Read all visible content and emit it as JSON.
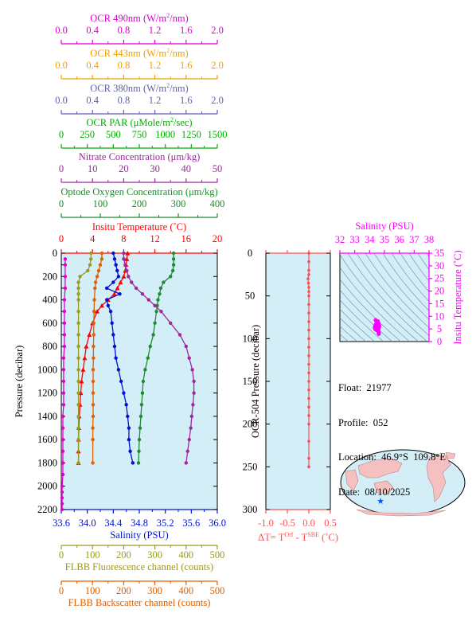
{
  "colors": {
    "ocr490": "#e000d0",
    "ocr443": "#f0a000",
    "ocr380": "#6060b0",
    "par": "#00b000",
    "nitrate": "#9a2a9a",
    "oxygen": "#208a30",
    "temperature": "#ff0000",
    "salinity": "#0010d0",
    "fluorescence": "#9a9a20",
    "backscatter": "#e06000",
    "plot_bg": "#d4eef8",
    "dt": "#ff5050",
    "ts_point": "#ff00ff"
  },
  "top_axes": [
    {
      "key": "ocr490",
      "label": "OCR 490nm (W/m²/nm)",
      "ticks": [
        "0.0",
        "0.4",
        "0.8",
        "1.2",
        "1.6",
        "2.0"
      ]
    },
    {
      "key": "ocr443",
      "label": "OCR 443nm (W/m²/nm)",
      "ticks": [
        "0.0",
        "0.4",
        "0.8",
        "1.2",
        "1.6",
        "2.0"
      ]
    },
    {
      "key": "ocr380",
      "label": "OCR 380nm (W/m²/nm)",
      "ticks": [
        "0.0",
        "0.4",
        "0.8",
        "1.2",
        "1.6",
        "2.0"
      ]
    },
    {
      "key": "par",
      "label": "OCR PAR (μMole/m²/sec)",
      "ticks": [
        "0",
        "250",
        "500",
        "750",
        "1000",
        "1250",
        "1500"
      ]
    },
    {
      "key": "nitrate",
      "label": "Nitrate Concentration (μm/kg)",
      "ticks": [
        "0",
        "10",
        "20",
        "30",
        "40",
        "50"
      ]
    },
    {
      "key": "oxygen",
      "label": "Optode Oxygen Concentration (μm/kg)",
      "ticks": [
        "0",
        "100",
        "200",
        "300",
        "400"
      ]
    },
    {
      "key": "temperature",
      "label": "Insitu Temperature (˚C)",
      "ticks": [
        "0",
        "4",
        "8",
        "12",
        "16",
        "20"
      ]
    }
  ],
  "bottom_axes": [
    {
      "key": "salinity",
      "label": "Salinity (PSU)",
      "ticks": [
        "33.6",
        "34.0",
        "34.4",
        "34.8",
        "35.2",
        "35.6",
        "36.0"
      ]
    },
    {
      "key": "fluorescence",
      "label": "FLBB Fluorescence channel (counts)",
      "ticks": [
        "0",
        "100",
        "200",
        "300",
        "400",
        "500"
      ]
    },
    {
      "key": "backscatter",
      "label": "FLBB Backscatter channel (counts)",
      "ticks": [
        "0",
        "100",
        "200",
        "300",
        "400",
        "500"
      ]
    }
  ],
  "pressure_axis": {
    "label": "Pressure (decibar)",
    "ticks": [
      "0",
      "200",
      "400",
      "600",
      "800",
      "1000",
      "1200",
      "1400",
      "1600",
      "1800",
      "2000",
      "2200"
    ]
  },
  "ocr_pressure_axis": {
    "label": "OCR-504 Pressure (decibar)",
    "ticks": [
      "0",
      "50",
      "100",
      "150",
      "200",
      "250",
      "300"
    ]
  },
  "dt_axis": {
    "label_main": "ΔT= T",
    "label_sup1": "Orf",
    "label_mid": " - T",
    "label_sup2": "SBE",
    "label_end": " (˚C)",
    "ticks": [
      "-1.0",
      "-0.5",
      "0.0",
      "0.5"
    ]
  },
  "ts_axis": {
    "title": "Salinity (PSU)",
    "sal_ticks": [
      "32",
      "33",
      "34",
      "35",
      "36",
      "37",
      "38"
    ],
    "temp_label": "Insitu Temperature (˚C)",
    "temp_ticks": [
      "0",
      "5",
      "10",
      "15",
      "20",
      "25",
      "30",
      "35"
    ]
  },
  "info": {
    "float": "Float:  21977",
    "profile": "Profile:  052",
    "location": "Location:  46.9°S  109.8°E",
    "date": "Date:  08/10/2025"
  },
  "chart_data": [
    {
      "type": "line",
      "y_name": "Pressure",
      "ylim": [
        2200,
        0
      ],
      "series": [
        {
          "name": "Insitu Temperature",
          "xlim": [
            0,
            20
          ],
          "x": [
            8.5,
            8.4,
            8.3,
            8.2,
            8.0,
            7.6,
            7.2,
            6.8,
            6.0,
            5.2,
            4.6,
            4.0,
            3.6,
            3.2,
            3.0,
            2.8,
            2.6,
            2.5,
            2.4,
            2.3,
            2.25,
            2.2,
            2.2,
            2.2
          ],
          "y": [
            0,
            50,
            100,
            150,
            200,
            250,
            300,
            350,
            400,
            450,
            500,
            600,
            700,
            800,
            900,
            1000,
            1100,
            1200,
            1300,
            1400,
            1500,
            1600,
            1700,
            1800
          ]
        },
        {
          "name": "Salinity",
          "xlim": [
            33.6,
            36.0
          ],
          "x": [
            34.4,
            34.42,
            34.44,
            34.46,
            34.48,
            34.4,
            34.3,
            34.5,
            34.3,
            34.32,
            34.36,
            34.38,
            34.4,
            34.42,
            34.44,
            34.48,
            34.52,
            34.56,
            34.6,
            34.62,
            34.64,
            34.64,
            34.66,
            34.7
          ],
          "y": [
            0,
            50,
            100,
            150,
            200,
            250,
            300,
            350,
            400,
            450,
            500,
            600,
            700,
            800,
            900,
            1000,
            1100,
            1200,
            1300,
            1400,
            1500,
            1600,
            1700,
            1800
          ]
        },
        {
          "name": "Optode Oxygen Concentration",
          "xlim": [
            0,
            400
          ],
          "x": [
            288,
            288,
            288,
            286,
            280,
            262,
            255,
            252,
            248,
            246,
            244,
            240,
            236,
            228,
            222,
            215,
            210,
            208,
            206,
            204,
            202,
            200,
            199,
            198
          ],
          "y": [
            0,
            50,
            100,
            150,
            200,
            250,
            300,
            350,
            400,
            450,
            500,
            600,
            700,
            800,
            900,
            1000,
            1100,
            1200,
            1300,
            1400,
            1500,
            1600,
            1700,
            1800
          ]
        },
        {
          "name": "Nitrate Concentration",
          "xlim": [
            0,
            50
          ],
          "x": [
            20,
            20,
            20.5,
            21,
            21.5,
            22.5,
            24,
            26,
            28,
            30,
            32,
            35,
            38,
            40,
            41,
            42,
            42.5,
            42.5,
            42.2,
            41.8,
            41.5,
            41,
            40.5,
            40
          ],
          "y": [
            0,
            50,
            100,
            150,
            200,
            250,
            300,
            350,
            400,
            450,
            500,
            600,
            700,
            800,
            900,
            1000,
            1100,
            1200,
            1300,
            1400,
            1500,
            1600,
            1700,
            1800
          ]
        },
        {
          "name": "OCR 490nm",
          "xlim": [
            0,
            2.0
          ],
          "x": [
            0.05,
            0.05,
            0.05,
            0.05,
            0.04,
            0.04,
            0.04,
            0.04,
            0.04,
            0.03,
            0.03,
            0.03,
            0.03,
            0.03,
            0.02,
            0.02,
            0.02,
            0.02,
            0.02,
            0.02,
            0.01,
            0.01,
            0.01,
            0.01,
            0.01
          ],
          "y": [
            50,
            100,
            200,
            300,
            400,
            500,
            600,
            700,
            800,
            900,
            1000,
            1100,
            1200,
            1300,
            1400,
            1500,
            1600,
            1700,
            1800,
            1900,
            2000,
            2050,
            2100,
            2150,
            2200
          ]
        },
        {
          "name": "FLBB Fluorescence channel",
          "xlim": [
            0,
            500
          ],
          "x": [
            95,
            95,
            92,
            85,
            60,
            55,
            55,
            55,
            55,
            55,
            55,
            55,
            55,
            55,
            55,
            55,
            55,
            55,
            55,
            55,
            55,
            55
          ],
          "y": [
            0,
            50,
            100,
            150,
            200,
            250,
            300,
            350,
            400,
            500,
            600,
            700,
            800,
            900,
            1000,
            1100,
            1200,
            1300,
            1400,
            1500,
            1600,
            1800
          ]
        },
        {
          "name": "FLBB Backscatter channel",
          "xlim": [
            0,
            500
          ],
          "x": [
            130,
            130,
            125,
            120,
            115,
            110,
            108,
            106,
            105,
            104,
            104,
            103,
            103,
            102,
            102,
            102,
            102,
            102,
            101,
            101,
            101
          ],
          "y": [
            0,
            50,
            100,
            150,
            200,
            250,
            300,
            400,
            500,
            600,
            700,
            800,
            900,
            1000,
            1100,
            1200,
            1300,
            1400,
            1500,
            1600,
            1800
          ]
        }
      ]
    },
    {
      "type": "line",
      "name": "Temperature difference",
      "xlim": [
        -1.0,
        0.5
      ],
      "ylim": [
        300,
        0
      ],
      "x": [
        0.0,
        0.0,
        0.0,
        0.0,
        -0.02,
        -0.01,
        0.0,
        0.0,
        0.0,
        0.0,
        0.0,
        0.0,
        0.0,
        0.0,
        0.0,
        0.0,
        0.0,
        0.0,
        0.0,
        0.0,
        0.0,
        0.0,
        0.0,
        0.0,
        0.0,
        0.0,
        0.0
      ],
      "y": [
        0,
        10,
        20,
        25,
        30,
        35,
        40,
        45,
        50,
        60,
        70,
        80,
        90,
        100,
        110,
        120,
        130,
        140,
        150,
        160,
        170,
        180,
        190,
        200,
        220,
        240,
        250
      ]
    },
    {
      "type": "scatter",
      "name": "T-S diagram",
      "xlim": [
        32,
        38
      ],
      "ylim": [
        0,
        35
      ],
      "x": [
        34.4,
        34.5,
        34.6,
        34.65,
        34.6,
        34.5,
        34.4,
        34.35,
        34.4,
        34.5,
        34.55,
        34.6,
        34.62
      ],
      "y": [
        8.5,
        8.0,
        7.2,
        6.0,
        5.0,
        4.5,
        4.8,
        5.5,
        6.5,
        7.6,
        8.0,
        4.0,
        3.0
      ]
    }
  ]
}
